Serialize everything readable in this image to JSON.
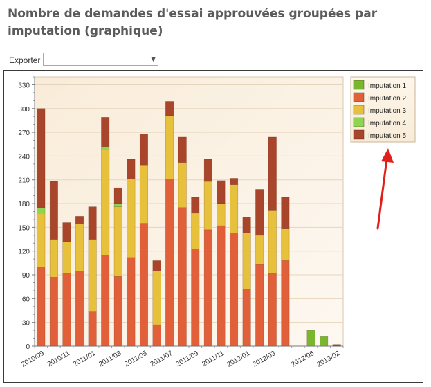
{
  "page": {
    "title": "Nombre de demandes d'essai approuvées groupées par imputation (graphique)"
  },
  "export": {
    "label": "Exporter",
    "selected": ""
  },
  "colors": {
    "Imputation 1": "#7ab72e",
    "Imputation 2": "#e1603a",
    "Imputation 3": "#e8c13c",
    "Imputation 4": "#8ed552",
    "Imputation 5": "#a8452b",
    "annotation_arrow": "#e0201a"
  },
  "chart_data": {
    "type": "bar",
    "stacked": true,
    "ylim": [
      0,
      340
    ],
    "yticks": [
      0,
      30,
      60,
      90,
      120,
      150,
      180,
      210,
      240,
      270,
      300,
      330
    ],
    "grid": true,
    "legend_position": "top-right",
    "categories": [
      "2010/09",
      "2010/10",
      "2010/11",
      "2010/12",
      "2011/01",
      "2011/02",
      "2011/03",
      "2011/04",
      "2011/05",
      "2011/06",
      "2011/07",
      "2011/08",
      "2011/09",
      "2011/10",
      "2011/11",
      "2011/12",
      "2012/01",
      "2012/02",
      "2012/03",
      "2012/04",
      "2012/05",
      "2012/06",
      "2012/07",
      "2013/02"
    ],
    "xtick_labels": [
      "2010/09",
      "2010/11",
      "2011/01",
      "2011/03",
      "2011/05",
      "2011/07",
      "2011/09",
      "2011/11",
      "2012/01",
      "2012/03",
      "2012/06",
      "2013/02"
    ],
    "series": [
      {
        "name": "Imputation 1",
        "values": [
          0,
          0,
          0,
          0,
          0,
          0,
          0,
          0,
          0,
          0,
          0,
          0,
          0,
          0,
          0,
          0,
          0,
          0,
          0,
          0,
          0,
          20,
          12,
          0
        ]
      },
      {
        "name": "Imputation 2",
        "values": [
          100,
          87,
          92,
          95,
          44,
          115,
          88,
          112,
          155,
          27,
          211,
          175,
          123,
          147,
          152,
          143,
          72,
          103,
          92,
          108,
          0,
          0,
          0,
          0
        ]
      },
      {
        "name": "Imputation 3",
        "values": [
          68,
          48,
          40,
          60,
          91,
          133,
          88,
          99,
          73,
          68,
          80,
          57,
          45,
          61,
          28,
          61,
          71,
          37,
          79,
          40,
          0,
          0,
          0,
          0
        ]
      },
      {
        "name": "Imputation 4",
        "values": [
          7,
          0,
          0,
          0,
          0,
          4,
          4,
          0,
          0,
          0,
          0,
          0,
          0,
          0,
          0,
          0,
          0,
          0,
          0,
          0,
          0,
          0,
          0,
          0
        ]
      },
      {
        "name": "Imputation 5",
        "values": [
          125,
          73,
          24,
          9,
          41,
          37,
          20,
          25,
          40,
          13,
          18,
          32,
          20,
          28,
          29,
          8,
          20,
          58,
          93,
          40,
          0,
          0,
          0,
          2
        ]
      }
    ]
  }
}
